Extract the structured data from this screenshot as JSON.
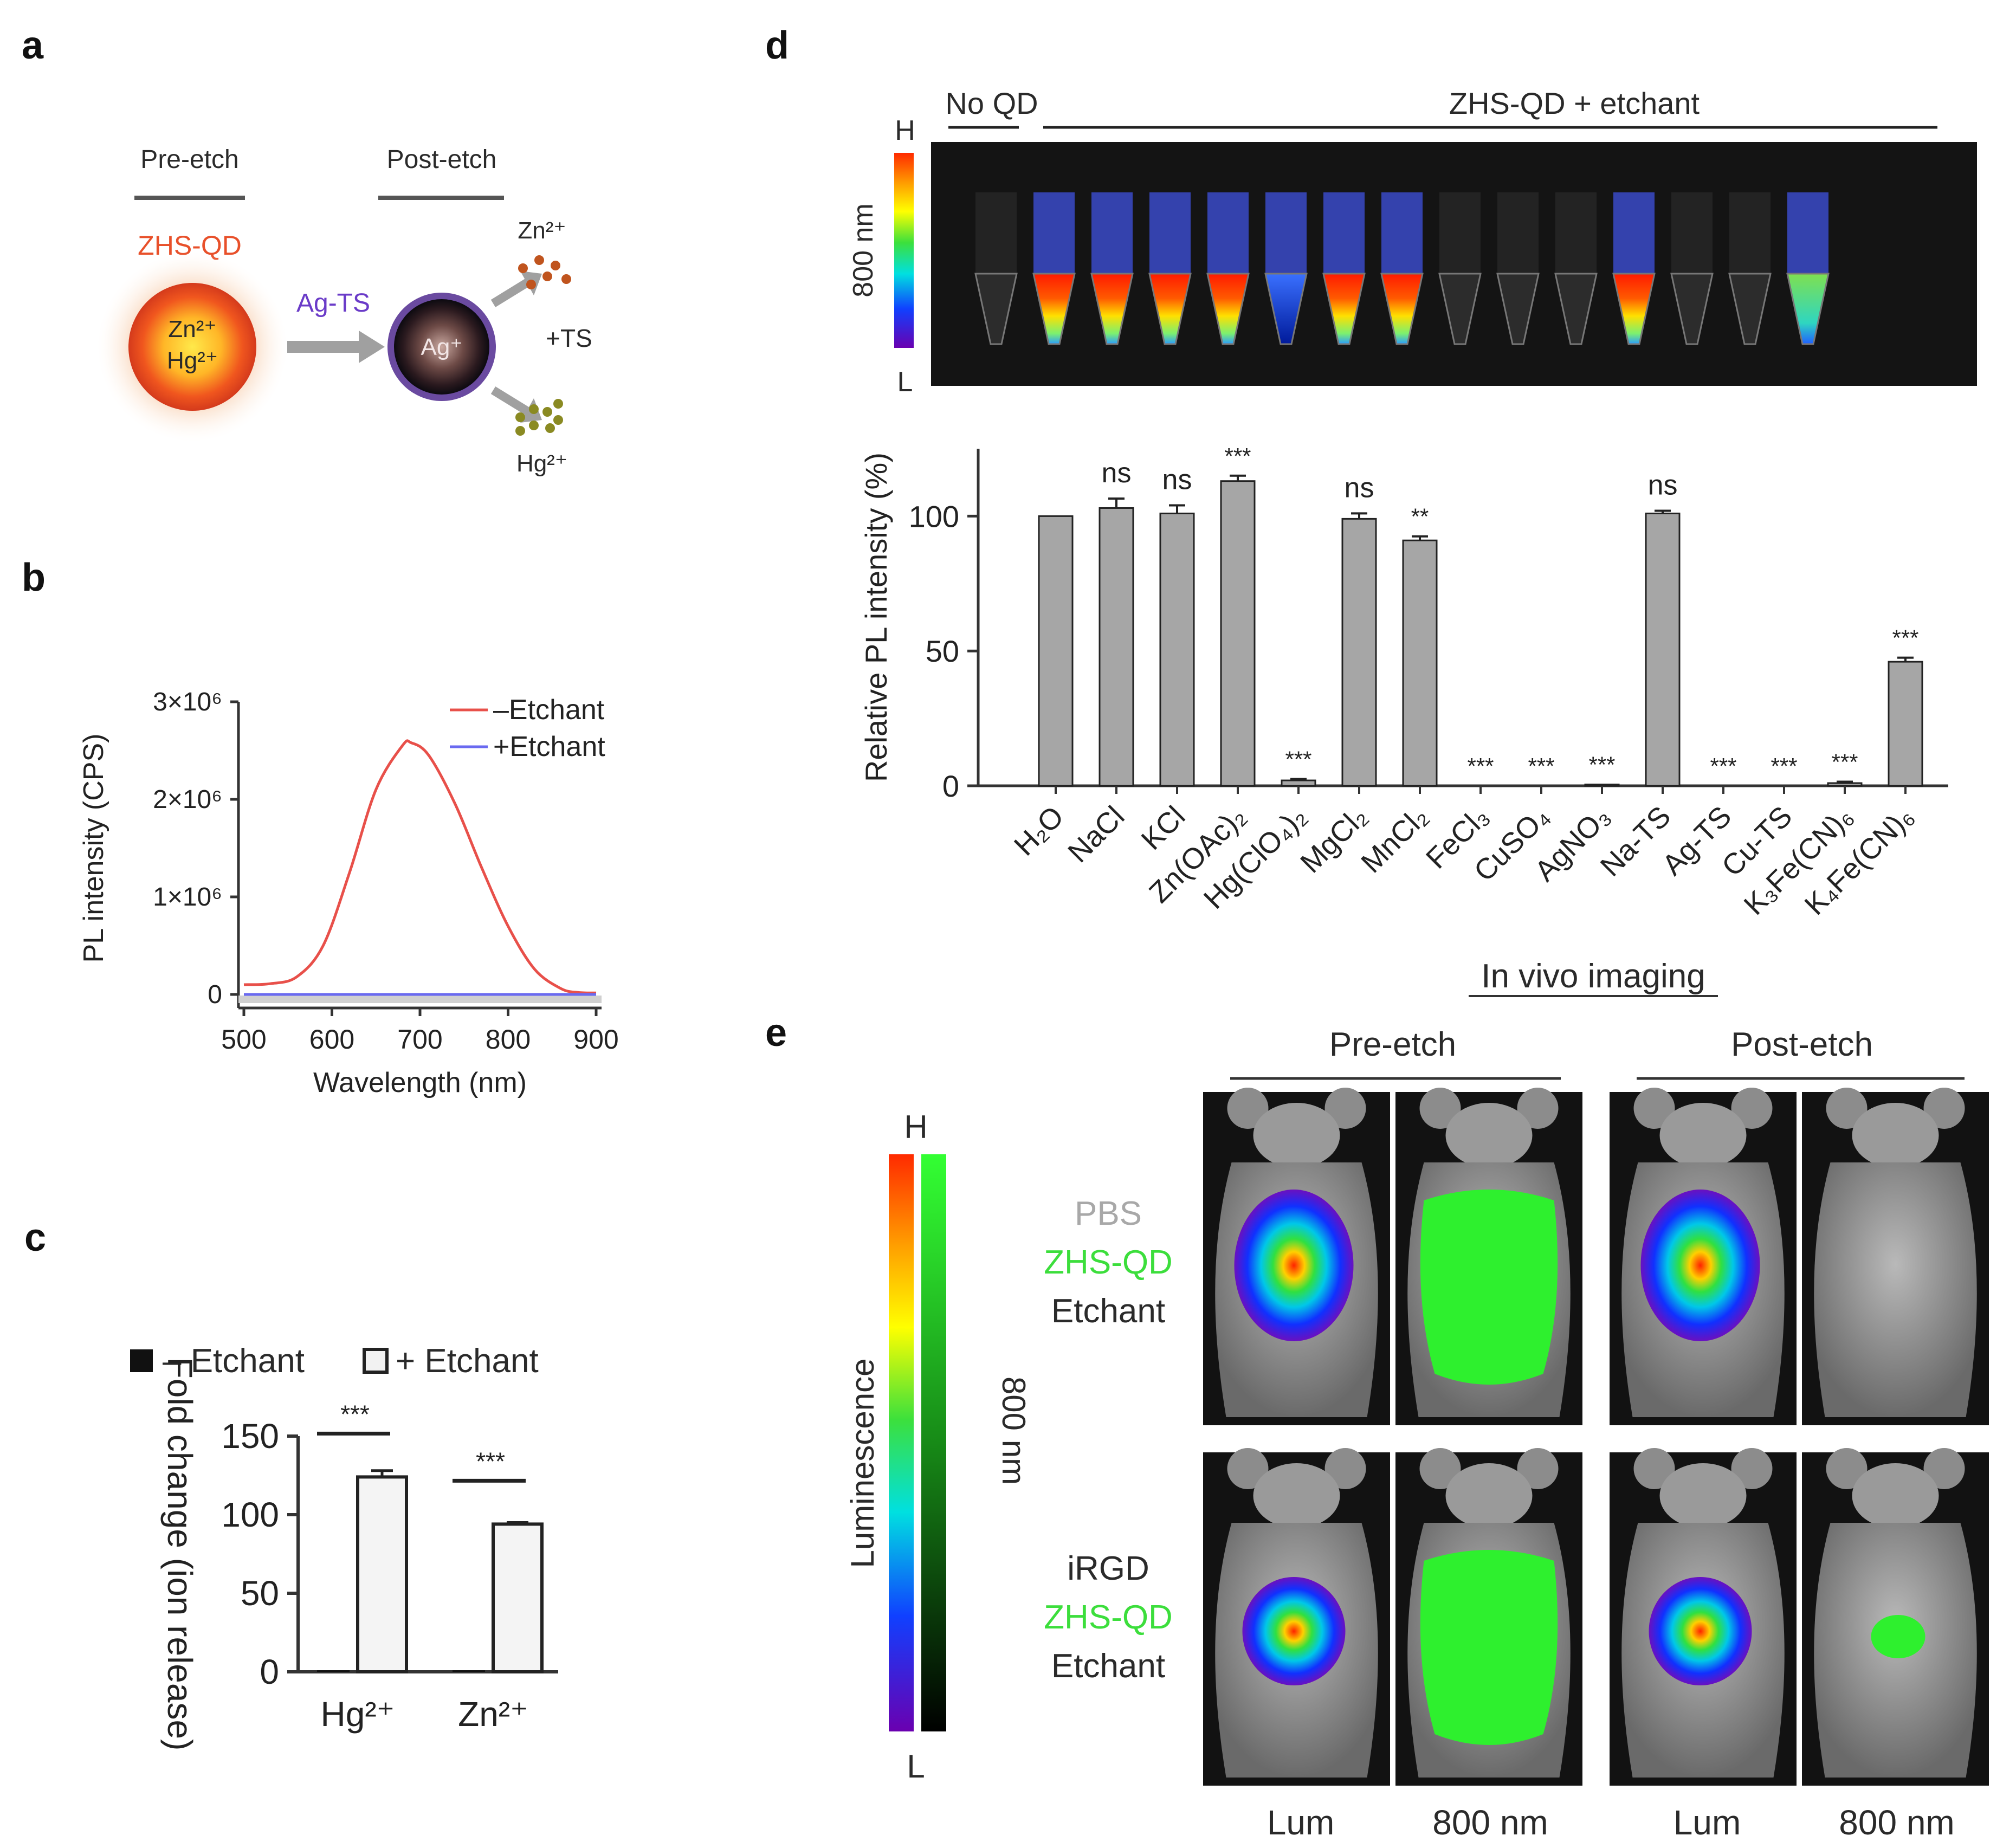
{
  "panels": {
    "a": {
      "label": "a",
      "pre_etch": "Pre-etch",
      "post_etch": "Post-etch",
      "qd_name": "ZHS-QD",
      "core_ion1": "Zn²⁺",
      "core_ion2": "Hg²⁺",
      "reagent": "Ag-TS",
      "etched_core": "Ag⁺",
      "released_zn": "Zn²⁺",
      "released_ts": "+TS",
      "released_hg": "Hg²⁺"
    },
    "b": {
      "label": "b",
      "legend_minus": "–Etchant",
      "legend_plus": "+Etchant",
      "colors": {
        "minus": "#e8504a",
        "plus": "#6a6af0"
      }
    },
    "c": {
      "label": "c",
      "legend_minus": "– Etchant",
      "legend_plus": "+ Etchant"
    },
    "d": {
      "label": "d",
      "group_no_qd": "No QD",
      "group_etchant": "ZHS-QD + etchant",
      "scale_high": "H",
      "scale_low": "L",
      "wavelength": "800 nm"
    },
    "e": {
      "label": "e",
      "header": "In vivo imaging",
      "pre_etch": "Pre-etch",
      "post_etch": "Post-etch",
      "scale_high": "H",
      "scale_low": "L",
      "lum_label": "Luminescence",
      "nir_label": "800 nm",
      "row1": [
        "PBS",
        "ZHS-QD",
        "Etchant"
      ],
      "row2": [
        "iRGD",
        "ZHS-QD",
        "Etchant"
      ],
      "col_labels": [
        "Lum",
        "800 nm",
        "Lum",
        "800 nm"
      ]
    }
  },
  "chart_data": [
    {
      "id": "b",
      "type": "line",
      "title": "",
      "xlabel": "Wavelength (nm)",
      "ylabel": "PL intensity (CPS)",
      "xlim": [
        500,
        900
      ],
      "ylim": [
        0,
        3000000
      ],
      "x_ticks": [
        "500",
        "600",
        "700",
        "800",
        "900"
      ],
      "y_ticks": [
        "0",
        "1×10⁶",
        "2×10⁶",
        "3×10⁶"
      ],
      "series": [
        {
          "name": "–Etchant",
          "x": [
            500,
            530,
            560,
            590,
            620,
            650,
            680,
            690,
            710,
            740,
            770,
            800,
            830,
            860,
            880,
            900
          ],
          "y": [
            100000,
            110000,
            180000,
            500000,
            1250000,
            2100000,
            2550000,
            2580000,
            2450000,
            1950000,
            1300000,
            700000,
            260000,
            60000,
            20000,
            15000
          ]
        },
        {
          "name": "+Etchant",
          "x": [
            500,
            900
          ],
          "y": [
            0,
            0
          ]
        }
      ]
    },
    {
      "id": "c",
      "type": "bar",
      "xlabel": "",
      "ylabel": "Fold change (ion release)",
      "ylim": [
        0,
        150
      ],
      "y_ticks": [
        "0",
        "50",
        "100",
        "150"
      ],
      "categories": [
        "Hg²⁺",
        "Zn²⁺"
      ],
      "series": [
        {
          "name": "– Etchant",
          "values": [
            1,
            1
          ]
        },
        {
          "name": "+ Etchant",
          "values": [
            124,
            94
          ],
          "errors": [
            4,
            1
          ]
        }
      ],
      "significance": [
        "***",
        "***"
      ]
    },
    {
      "id": "d",
      "type": "bar",
      "xlabel": "",
      "ylabel": "Relative PL intensity (%)",
      "ylim": [
        0,
        125
      ],
      "y_ticks": [
        "0",
        "50",
        "100"
      ],
      "categories": [
        "H₂O",
        "NaCl",
        "KCl",
        "Zn(OAc)₂",
        "Hg(ClO₄)₂",
        "MgCl₂",
        "MnCl₂",
        "FeCl₃",
        "CuSO₄",
        "AgNO₃",
        "Na-TS",
        "Ag-TS",
        "Cu-TS",
        "K₃Fe(CN)₆",
        "K₄Fe(CN)₆"
      ],
      "values": [
        100,
        103,
        101,
        113,
        2,
        99,
        91,
        0,
        0,
        0.5,
        101,
        0,
        0,
        1,
        46
      ],
      "errors": [
        0,
        3.5,
        3,
        2,
        0.5,
        2,
        1.5,
        0,
        0,
        0,
        1,
        0,
        0,
        0.5,
        1.5
      ],
      "significance": [
        "",
        "ns",
        "ns",
        "***",
        "***",
        "ns",
        "**",
        "***",
        "***",
        "***",
        "ns",
        "***",
        "***",
        "***",
        "***"
      ]
    }
  ]
}
